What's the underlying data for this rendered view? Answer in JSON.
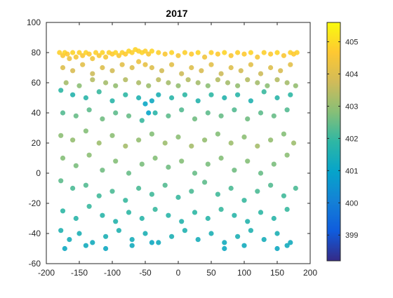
{
  "chart_data": {
    "type": "scatter",
    "title": "2017",
    "xlabel": "",
    "ylabel": "",
    "xlim": [
      -200,
      200
    ],
    "ylim": [
      -60,
      100
    ],
    "xticks": [
      -200,
      -150,
      -100,
      -50,
      0,
      50,
      100,
      150,
      200
    ],
    "yticks": [
      -60,
      -40,
      -20,
      0,
      20,
      40,
      60,
      80,
      100
    ],
    "grid": false,
    "colorbar": {
      "label": "",
      "range": [
        398.2,
        405.6
      ],
      "ticks": [
        399,
        400,
        401,
        402,
        403,
        404,
        405
      ],
      "colormap": "parula",
      "stops": [
        "#352a87",
        "#0f5cdd",
        "#1481d6",
        "#06a4ca",
        "#2eb7a4",
        "#87bf77",
        "#d1bb59",
        "#fec832",
        "#f9fb0e"
      ]
    },
    "points": [
      [
        -180,
        80,
        404.8
      ],
      [
        -175,
        78,
        404.6
      ],
      [
        -172,
        80,
        404.9
      ],
      [
        -168,
        79,
        404.7
      ],
      [
        -165,
        76,
        404.3
      ],
      [
        -160,
        80,
        404.9
      ],
      [
        -155,
        77,
        404.5
      ],
      [
        -150,
        80,
        404.8
      ],
      [
        -145,
        78,
        404.6
      ],
      [
        -140,
        80,
        404.9
      ],
      [
        -135,
        79,
        404.7
      ],
      [
        -130,
        76,
        404.4
      ],
      [
        -125,
        80,
        404.8
      ],
      [
        -120,
        78,
        404.6
      ],
      [
        -115,
        80,
        404.9
      ],
      [
        -110,
        77,
        404.5
      ],
      [
        -105,
        80,
        404.8
      ],
      [
        -100,
        79,
        404.7
      ],
      [
        -95,
        80,
        404.9
      ],
      [
        -90,
        78,
        404.6
      ],
      [
        -85,
        80,
        404.8
      ],
      [
        -80,
        79,
        404.7
      ],
      [
        -75,
        81,
        404.9
      ],
      [
        -70,
        80,
        404.8
      ],
      [
        -65,
        82,
        404.9
      ],
      [
        -60,
        81,
        404.8
      ],
      [
        -55,
        80,
        404.9
      ],
      [
        -50,
        81,
        404.8
      ],
      [
        -45,
        79,
        404.6
      ],
      [
        -40,
        81,
        404.9
      ],
      [
        -30,
        80,
        404.8
      ],
      [
        -20,
        79,
        404.6
      ],
      [
        -10,
        80,
        404.9
      ],
      [
        0,
        78,
        404.5
      ],
      [
        10,
        80,
        404.8
      ],
      [
        20,
        79,
        404.7
      ],
      [
        30,
        80,
        404.9
      ],
      [
        40,
        77,
        404.4
      ],
      [
        50,
        80,
        404.8
      ],
      [
        60,
        79,
        404.7
      ],
      [
        70,
        80,
        404.9
      ],
      [
        80,
        78,
        404.6
      ],
      [
        90,
        80,
        404.8
      ],
      [
        100,
        79,
        404.7
      ],
      [
        110,
        80,
        404.9
      ],
      [
        120,
        77,
        404.5
      ],
      [
        130,
        80,
        404.8
      ],
      [
        140,
        79,
        404.7
      ],
      [
        150,
        80,
        404.9
      ],
      [
        160,
        78,
        404.6
      ],
      [
        170,
        80,
        404.8
      ],
      [
        175,
        79,
        404.7
      ],
      [
        180,
        80,
        404.8
      ],
      [
        -175,
        70,
        404.0
      ],
      [
        -160,
        68,
        403.9
      ],
      [
        -145,
        72,
        404.1
      ],
      [
        -130,
        66,
        403.7
      ],
      [
        -115,
        70,
        404.0
      ],
      [
        -100,
        68,
        403.8
      ],
      [
        -85,
        72,
        404.1
      ],
      [
        -70,
        70,
        404.0
      ],
      [
        -60,
        74,
        404.3
      ],
      [
        -50,
        72,
        404.2
      ],
      [
        -40,
        70,
        404.0
      ],
      [
        -25,
        68,
        403.8
      ],
      [
        -10,
        72,
        404.1
      ],
      [
        5,
        66,
        403.7
      ],
      [
        20,
        70,
        404.0
      ],
      [
        35,
        68,
        403.9
      ],
      [
        50,
        72,
        404.1
      ],
      [
        65,
        66,
        403.7
      ],
      [
        80,
        70,
        404.0
      ],
      [
        95,
        68,
        403.8
      ],
      [
        110,
        72,
        404.1
      ],
      [
        125,
        66,
        403.7
      ],
      [
        140,
        70,
        404.0
      ],
      [
        155,
        68,
        403.9
      ],
      [
        170,
        72,
        404.1
      ],
      [
        -170,
        60,
        403.2
      ],
      [
        -150,
        58,
        402.9
      ],
      [
        -130,
        62,
        403.4
      ],
      [
        -110,
        60,
        403.2
      ],
      [
        -95,
        58,
        403.0
      ],
      [
        -80,
        62,
        403.4
      ],
      [
        -60,
        60,
        403.3
      ],
      [
        -45,
        58,
        403.1
      ],
      [
        -30,
        62,
        403.5
      ],
      [
        -15,
        60,
        403.2
      ],
      [
        0,
        58,
        403.0
      ],
      [
        15,
        62,
        403.4
      ],
      [
        30,
        60,
        403.2
      ],
      [
        45,
        58,
        402.9
      ],
      [
        60,
        62,
        403.4
      ],
      [
        75,
        60,
        403.2
      ],
      [
        90,
        58,
        403.0
      ],
      [
        105,
        62,
        403.4
      ],
      [
        120,
        60,
        403.2
      ],
      [
        135,
        58,
        402.9
      ],
      [
        150,
        62,
        403.4
      ],
      [
        165,
        60,
        403.2
      ],
      [
        178,
        58,
        403.0
      ],
      [
        -178,
        55,
        401.9
      ],
      [
        -160,
        52,
        401.7
      ],
      [
        -140,
        50,
        401.8
      ],
      [
        -120,
        54,
        402.0
      ],
      [
        -100,
        48,
        401.8
      ],
      [
        -80,
        52,
        401.9
      ],
      [
        -60,
        50,
        401.6
      ],
      [
        -50,
        46,
        401.1
      ],
      [
        -45,
        40,
        401.0
      ],
      [
        -40,
        48,
        401.2
      ],
      [
        -30,
        52,
        401.5
      ],
      [
        -10,
        50,
        401.8
      ],
      [
        10,
        52,
        401.9
      ],
      [
        30,
        48,
        401.7
      ],
      [
        50,
        52,
        401.9
      ],
      [
        70,
        50,
        401.7
      ],
      [
        90,
        52,
        401.8
      ],
      [
        110,
        48,
        401.6
      ],
      [
        130,
        54,
        402.0
      ],
      [
        150,
        50,
        401.8
      ],
      [
        170,
        52,
        401.9
      ],
      [
        -175,
        40,
        402.3
      ],
      [
        -155,
        38,
        402.5
      ],
      [
        -135,
        42,
        402.4
      ],
      [
        -115,
        36,
        402.6
      ],
      [
        -95,
        40,
        402.4
      ],
      [
        -75,
        38,
        402.5
      ],
      [
        -55,
        35,
        402.0
      ],
      [
        -35,
        40,
        401.8
      ],
      [
        -15,
        38,
        402.4
      ],
      [
        5,
        42,
        402.3
      ],
      [
        25,
        36,
        402.6
      ],
      [
        45,
        40,
        402.4
      ],
      [
        65,
        38,
        402.5
      ],
      [
        85,
        42,
        402.3
      ],
      [
        105,
        36,
        402.6
      ],
      [
        125,
        40,
        402.4
      ],
      [
        145,
        38,
        402.5
      ],
      [
        165,
        42,
        402.3
      ],
      [
        -178,
        25,
        402.9
      ],
      [
        -160,
        22,
        403.0
      ],
      [
        -140,
        28,
        402.8
      ],
      [
        -120,
        20,
        403.1
      ],
      [
        -100,
        25,
        402.9
      ],
      [
        -80,
        18,
        403.2
      ],
      [
        -60,
        22,
        403.0
      ],
      [
        -40,
        26,
        402.8
      ],
      [
        -20,
        20,
        403.1
      ],
      [
        0,
        24,
        402.9
      ],
      [
        20,
        18,
        403.2
      ],
      [
        40,
        22,
        403.0
      ],
      [
        60,
        26,
        402.8
      ],
      [
        80,
        20,
        403.1
      ],
      [
        100,
        24,
        402.9
      ],
      [
        120,
        18,
        403.2
      ],
      [
        140,
        22,
        403.0
      ],
      [
        160,
        26,
        402.8
      ],
      [
        175,
        20,
        403.1
      ],
      [
        -175,
        10,
        402.8
      ],
      [
        -155,
        5,
        402.7
      ],
      [
        -135,
        12,
        402.9
      ],
      [
        -115,
        2,
        402.6
      ],
      [
        -95,
        8,
        402.8
      ],
      [
        -75,
        0,
        402.5
      ],
      [
        -55,
        6,
        402.7
      ],
      [
        -35,
        10,
        402.8
      ],
      [
        -15,
        4,
        402.6
      ],
      [
        5,
        8,
        402.8
      ],
      [
        25,
        0,
        402.5
      ],
      [
        45,
        6,
        402.7
      ],
      [
        65,
        10,
        402.8
      ],
      [
        85,
        2,
        402.6
      ],
      [
        105,
        8,
        402.8
      ],
      [
        125,
        0,
        402.5
      ],
      [
        145,
        6,
        402.7
      ],
      [
        165,
        12,
        402.9
      ],
      [
        -178,
        -5,
        402.4
      ],
      [
        -160,
        -10,
        402.2
      ],
      [
        -140,
        -8,
        402.3
      ],
      [
        -120,
        -15,
        402.1
      ],
      [
        -100,
        -12,
        402.2
      ],
      [
        -80,
        -18,
        402.0
      ],
      [
        -60,
        -10,
        402.2
      ],
      [
        -40,
        -14,
        402.1
      ],
      [
        -20,
        -8,
        402.3
      ],
      [
        0,
        -16,
        402.0
      ],
      [
        20,
        -12,
        402.2
      ],
      [
        40,
        -6,
        402.4
      ],
      [
        60,
        -14,
        402.1
      ],
      [
        80,
        -10,
        402.2
      ],
      [
        100,
        -18,
        402.0
      ],
      [
        120,
        -12,
        402.2
      ],
      [
        140,
        -8,
        402.3
      ],
      [
        160,
        -15,
        402.1
      ],
      [
        178,
        -10,
        402.2
      ],
      [
        -175,
        -25,
        401.9
      ],
      [
        -155,
        -30,
        401.8
      ],
      [
        -135,
        -22,
        402.0
      ],
      [
        -115,
        -28,
        401.8
      ],
      [
        -95,
        -32,
        401.7
      ],
      [
        -75,
        -26,
        401.9
      ],
      [
        -55,
        -30,
        401.8
      ],
      [
        -35,
        -24,
        402.0
      ],
      [
        -15,
        -28,
        401.8
      ],
      [
        5,
        -32,
        401.7
      ],
      [
        25,
        -26,
        401.9
      ],
      [
        45,
        -30,
        401.8
      ],
      [
        65,
        -24,
        402.0
      ],
      [
        85,
        -28,
        401.8
      ],
      [
        105,
        -32,
        401.7
      ],
      [
        125,
        -26,
        401.9
      ],
      [
        145,
        -30,
        401.8
      ],
      [
        165,
        -24,
        402.0
      ],
      [
        -178,
        -38,
        401.6
      ],
      [
        -165,
        -44,
        401.4
      ],
      [
        -150,
        -40,
        401.5
      ],
      [
        -130,
        -46,
        401.3
      ],
      [
        -110,
        -42,
        401.5
      ],
      [
        -90,
        -38,
        401.6
      ],
      [
        -70,
        -44,
        401.4
      ],
      [
        -50,
        -40,
        401.5
      ],
      [
        -30,
        -46,
        401.3
      ],
      [
        -10,
        -42,
        401.5
      ],
      [
        10,
        -38,
        401.6
      ],
      [
        30,
        -44,
        401.4
      ],
      [
        50,
        -40,
        401.5
      ],
      [
        70,
        -46,
        401.3
      ],
      [
        90,
        -42,
        401.5
      ],
      [
        110,
        -38,
        401.6
      ],
      [
        130,
        -44,
        401.4
      ],
      [
        150,
        -40,
        401.5
      ],
      [
        170,
        -46,
        401.3
      ],
      [
        -172,
        -50,
        401.2
      ],
      [
        -140,
        -48,
        401.3
      ],
      [
        -110,
        -50,
        401.2
      ],
      [
        -70,
        -48,
        401.3
      ],
      [
        -40,
        -46,
        401.2
      ],
      [
        70,
        -50,
        401.2
      ],
      [
        100,
        -48,
        401.3
      ],
      [
        150,
        -50,
        401.2
      ],
      [
        165,
        -48,
        401.3
      ]
    ]
  }
}
